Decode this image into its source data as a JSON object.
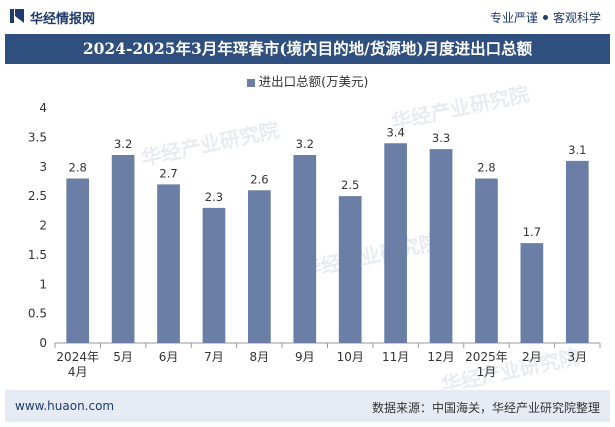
{
  "header": {
    "brand": "华经情报网",
    "slogan_left": "专业严谨",
    "slogan_right": "客观科学"
  },
  "title": "2024-2025年3月年珲春市(境内目的地/货源地)月度进出口总额",
  "footer": {
    "url": "www.huaon.com",
    "source": "数据来源：中国海关，华经产业研究院整理"
  },
  "watermarks": [
    "华经产业研究院",
    "www.huaon.com"
  ],
  "colors": {
    "bar": "#6b7fa6",
    "title_bg": "#2f4f7f",
    "footer_bg": "#e6ebf3"
  },
  "chart_data": {
    "type": "bar",
    "categories": [
      "2024年\n4月",
      "5月",
      "6月",
      "7月",
      "8月",
      "9月",
      "10月",
      "11月",
      "12月",
      "2025年\n1月",
      "2月",
      "3月"
    ],
    "series": [
      {
        "name": "进出口总额(万美元)",
        "values": [
          2.8,
          3.2,
          2.7,
          2.3,
          2.6,
          3.2,
          2.5,
          3.4,
          3.3,
          2.8,
          1.7,
          3.1
        ]
      }
    ],
    "ylim": [
      0,
      4
    ],
    "yticks": [
      "0",
      "0.5",
      "1",
      "1.5",
      "2",
      "2.5",
      "3",
      "3.5",
      "4"
    ],
    "xlabel": "",
    "ylabel": "",
    "legend": "top-center",
    "grid": false
  }
}
